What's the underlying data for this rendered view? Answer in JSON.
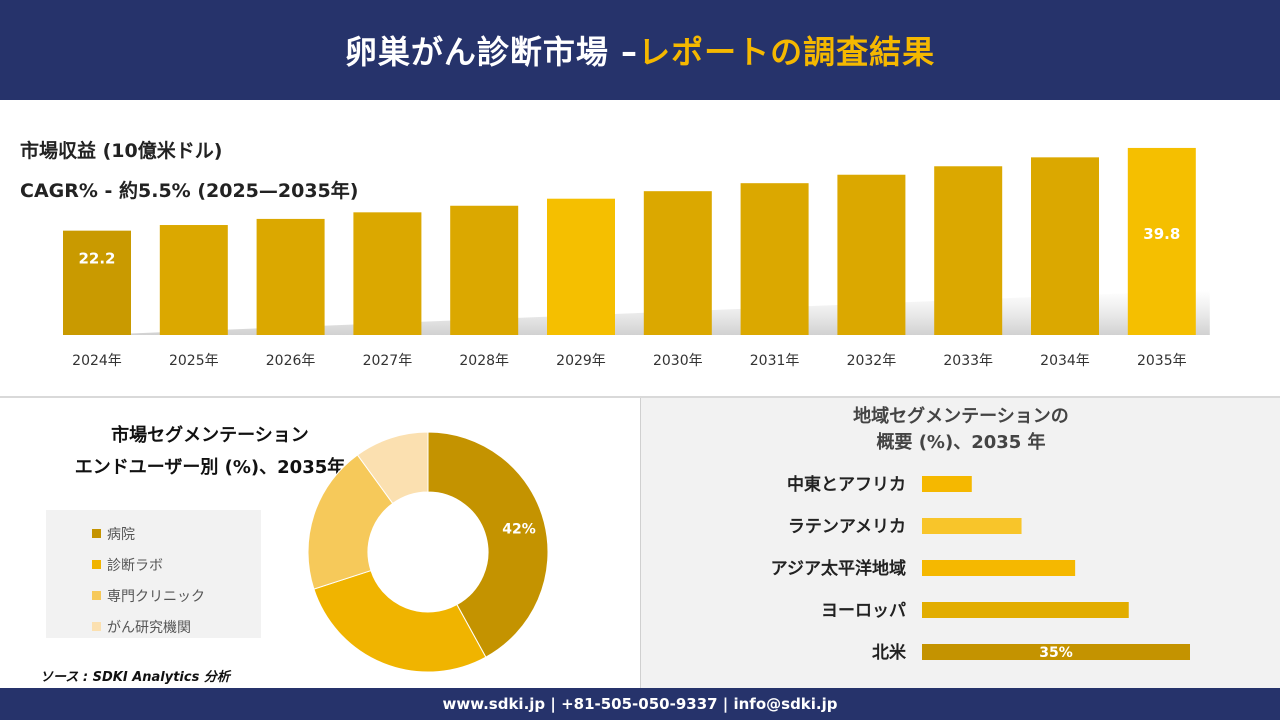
{
  "header": {
    "title_main": "卵巣がん診断市場 –",
    "title_accent": "レポートの調査結果"
  },
  "top_meta": {
    "revenue_label": "市場収益 (10億米ドル)",
    "cagr_label": "CAGR% - 約5.5% (2025—2035年)"
  },
  "colors": {
    "header_bg": "#26336b",
    "accent": "#f5b800",
    "bar": "#dba800",
    "bar_first": "#c99a00",
    "bar_highlight": "#f5bf00"
  },
  "chart_data": [
    {
      "type": "bar",
      "categories": [
        "2024年",
        "2025年",
        "2026年",
        "2027年",
        "2028年",
        "2029年",
        "2030年",
        "2031年",
        "2032年",
        "2033年",
        "2034年",
        "2035年"
      ],
      "values": [
        22.2,
        23.4,
        24.7,
        26.1,
        27.5,
        29.0,
        30.6,
        32.3,
        34.1,
        35.9,
        37.8,
        39.8
      ],
      "data_labels": [
        "22.2",
        "",
        "",
        "",
        "",
        "",
        "",
        "",
        "",
        "",
        "",
        "39.8"
      ],
      "ylim": [
        0,
        40
      ],
      "grid": false
    },
    {
      "type": "pie",
      "title": "市場セグメンテーション エンドユーザー別 (%)、2035年",
      "categories": [
        "病院",
        "診断ラボ",
        "専門クリニック",
        "がん研究機関"
      ],
      "values": [
        42,
        28,
        20,
        10
      ],
      "data_labels": [
        "42%",
        "",
        "",
        ""
      ],
      "colors": [
        "#c49300",
        "#f0b400",
        "#f6c95a",
        "#fbe0b0"
      ],
      "legend": "left"
    },
    {
      "type": "bar",
      "orientation": "horizontal",
      "title": "地域セグメンテーションの 概要 (%)、2035 年",
      "categories": [
        "中東とアフリカ",
        "ラテンアメリカ",
        "アジア太平洋地域",
        "ヨーロッパ",
        "北米"
      ],
      "values": [
        6.5,
        13,
        20,
        27,
        35
      ],
      "data_labels": [
        "",
        "",
        "",
        "",
        "35%"
      ],
      "colors": [
        "#f5b800",
        "#f8c52a",
        "#f5b800",
        "#e2ad00",
        "#c49300"
      ]
    }
  ],
  "seg_title_line1": "市場セグメンテーション",
  "seg_title_line2": "エンドユーザー別 (%)、2035年",
  "reg_title_line1": "地域セグメンテーションの",
  "reg_title_line2": "概要 (%)、2035 年",
  "source": "ソース : SDKI Analytics 分析",
  "footer": {
    "contact": "www.sdki.jp | +81-505-050-9337 | info@sdki.jp"
  }
}
